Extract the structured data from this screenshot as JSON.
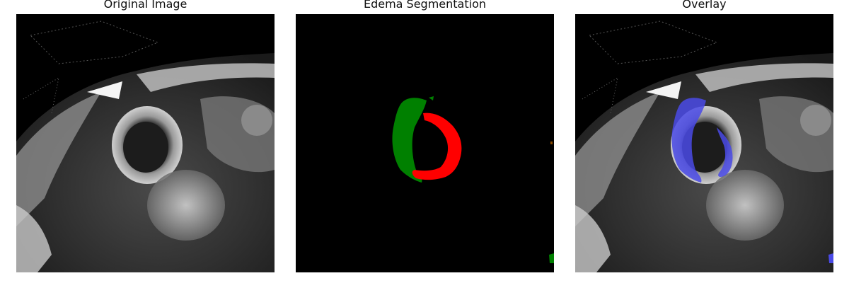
{
  "panels": [
    {
      "title": "Original Image"
    },
    {
      "title": "Edema Segmentation"
    },
    {
      "title": "Overlay"
    }
  ],
  "colors": {
    "segmentation_class_a": "#008000",
    "segmentation_class_b": "#ff0000",
    "overlay_mask": "#4a4ae6",
    "background": "#000000"
  }
}
